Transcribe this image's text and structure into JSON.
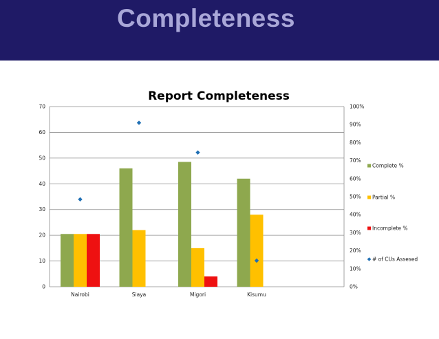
{
  "slide": {
    "title": "Completeness"
  },
  "chart_data": {
    "type": "bar",
    "title": "Report Completeness",
    "categories": [
      "Nairobi",
      "Siaya",
      "Migori",
      "Kisumu"
    ],
    "ylim": [
      0,
      70
    ],
    "yticks": [
      0,
      10,
      20,
      30,
      40,
      50,
      60,
      70
    ],
    "y2lim": [
      0,
      100
    ],
    "y2ticks": [
      "0%",
      "10%",
      "20%",
      "30%",
      "40%",
      "50%",
      "60%",
      "70%",
      "80%",
      "90%",
      "100%"
    ],
    "series": [
      {
        "name": "Complete %",
        "type": "bar",
        "axis": "left",
        "color": "#8ea84e",
        "values": [
          20.5,
          46,
          48.5,
          42
        ]
      },
      {
        "name": "Partial %",
        "type": "bar",
        "axis": "left",
        "color": "#ffc000",
        "values": [
          20.5,
          22,
          15,
          28
        ]
      },
      {
        "name": "Incomplete %",
        "type": "bar",
        "axis": "left",
        "color": "#ee1111",
        "values": [
          20.5,
          null,
          4,
          null
        ]
      },
      {
        "name": "# of CUs Assesed",
        "type": "scatter",
        "axis": "right",
        "color": "#1f6fb4",
        "marker": "diamond",
        "values": [
          48.5,
          91,
          74.5,
          14.5
        ]
      }
    ],
    "grid": true,
    "legend_position": "right"
  }
}
